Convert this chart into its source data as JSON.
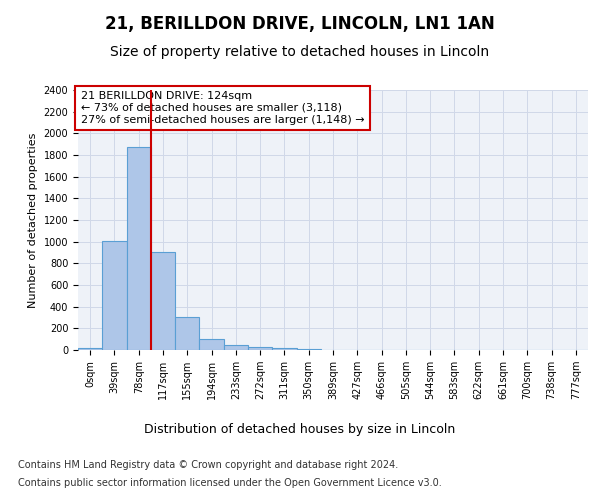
{
  "title": "21, BERILLDON DRIVE, LINCOLN, LN1 1AN",
  "subtitle": "Size of property relative to detached houses in Lincoln",
  "xlabel": "Distribution of detached houses by size in Lincoln",
  "ylabel": "Number of detached properties",
  "categories": [
    "0sqm",
    "39sqm",
    "78sqm",
    "117sqm",
    "155sqm",
    "194sqm",
    "233sqm",
    "272sqm",
    "311sqm",
    "350sqm",
    "389sqm",
    "427sqm",
    "466sqm",
    "505sqm",
    "544sqm",
    "583sqm",
    "622sqm",
    "661sqm",
    "700sqm",
    "738sqm",
    "777sqm"
  ],
  "values": [
    20,
    1005,
    1870,
    905,
    305,
    105,
    50,
    32,
    18,
    10,
    0,
    0,
    0,
    0,
    0,
    0,
    0,
    0,
    0,
    0,
    0
  ],
  "bar_color": "#aec6e8",
  "bar_edgecolor": "#5a9fd4",
  "vline_color": "#cc0000",
  "vline_pos": 2.5,
  "annotation_text": "21 BERILLDON DRIVE: 124sqm\n← 73% of detached houses are smaller (3,118)\n27% of semi-detached houses are larger (1,148) →",
  "annotation_box_color": "#cc0000",
  "annotation_text_color": "#000000",
  "ylim": [
    0,
    2400
  ],
  "yticks": [
    0,
    200,
    400,
    600,
    800,
    1000,
    1200,
    1400,
    1600,
    1800,
    2000,
    2200,
    2400
  ],
  "grid_color": "#d0d8e8",
  "background_color": "#eef2f8",
  "footer_line1": "Contains HM Land Registry data © Crown copyright and database right 2024.",
  "footer_line2": "Contains public sector information licensed under the Open Government Licence v3.0.",
  "title_fontsize": 12,
  "subtitle_fontsize": 10,
  "xlabel_fontsize": 9,
  "ylabel_fontsize": 8,
  "tick_fontsize": 7,
  "annotation_fontsize": 8,
  "footer_fontsize": 7
}
